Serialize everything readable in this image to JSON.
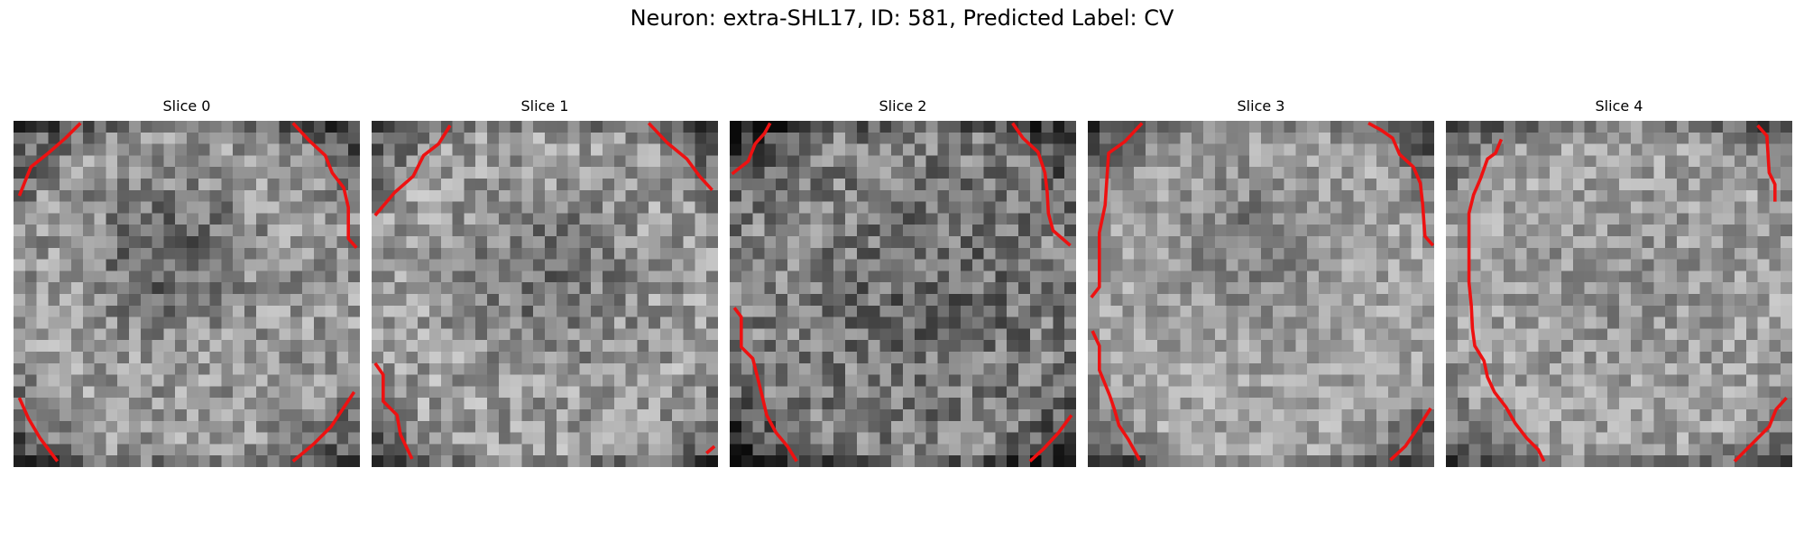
{
  "figure": {
    "title": "Neuron: extra-SHL17, ID: 581, Predicted Label: CV"
  },
  "slices": [
    {
      "title": "Slice 0"
    },
    {
      "title": "Slice 1"
    },
    {
      "title": "Slice 2"
    },
    {
      "title": "Slice 3"
    },
    {
      "title": "Slice 4"
    }
  ],
  "colors": {
    "contour": "#ee1111",
    "background": "#ffffff"
  }
}
